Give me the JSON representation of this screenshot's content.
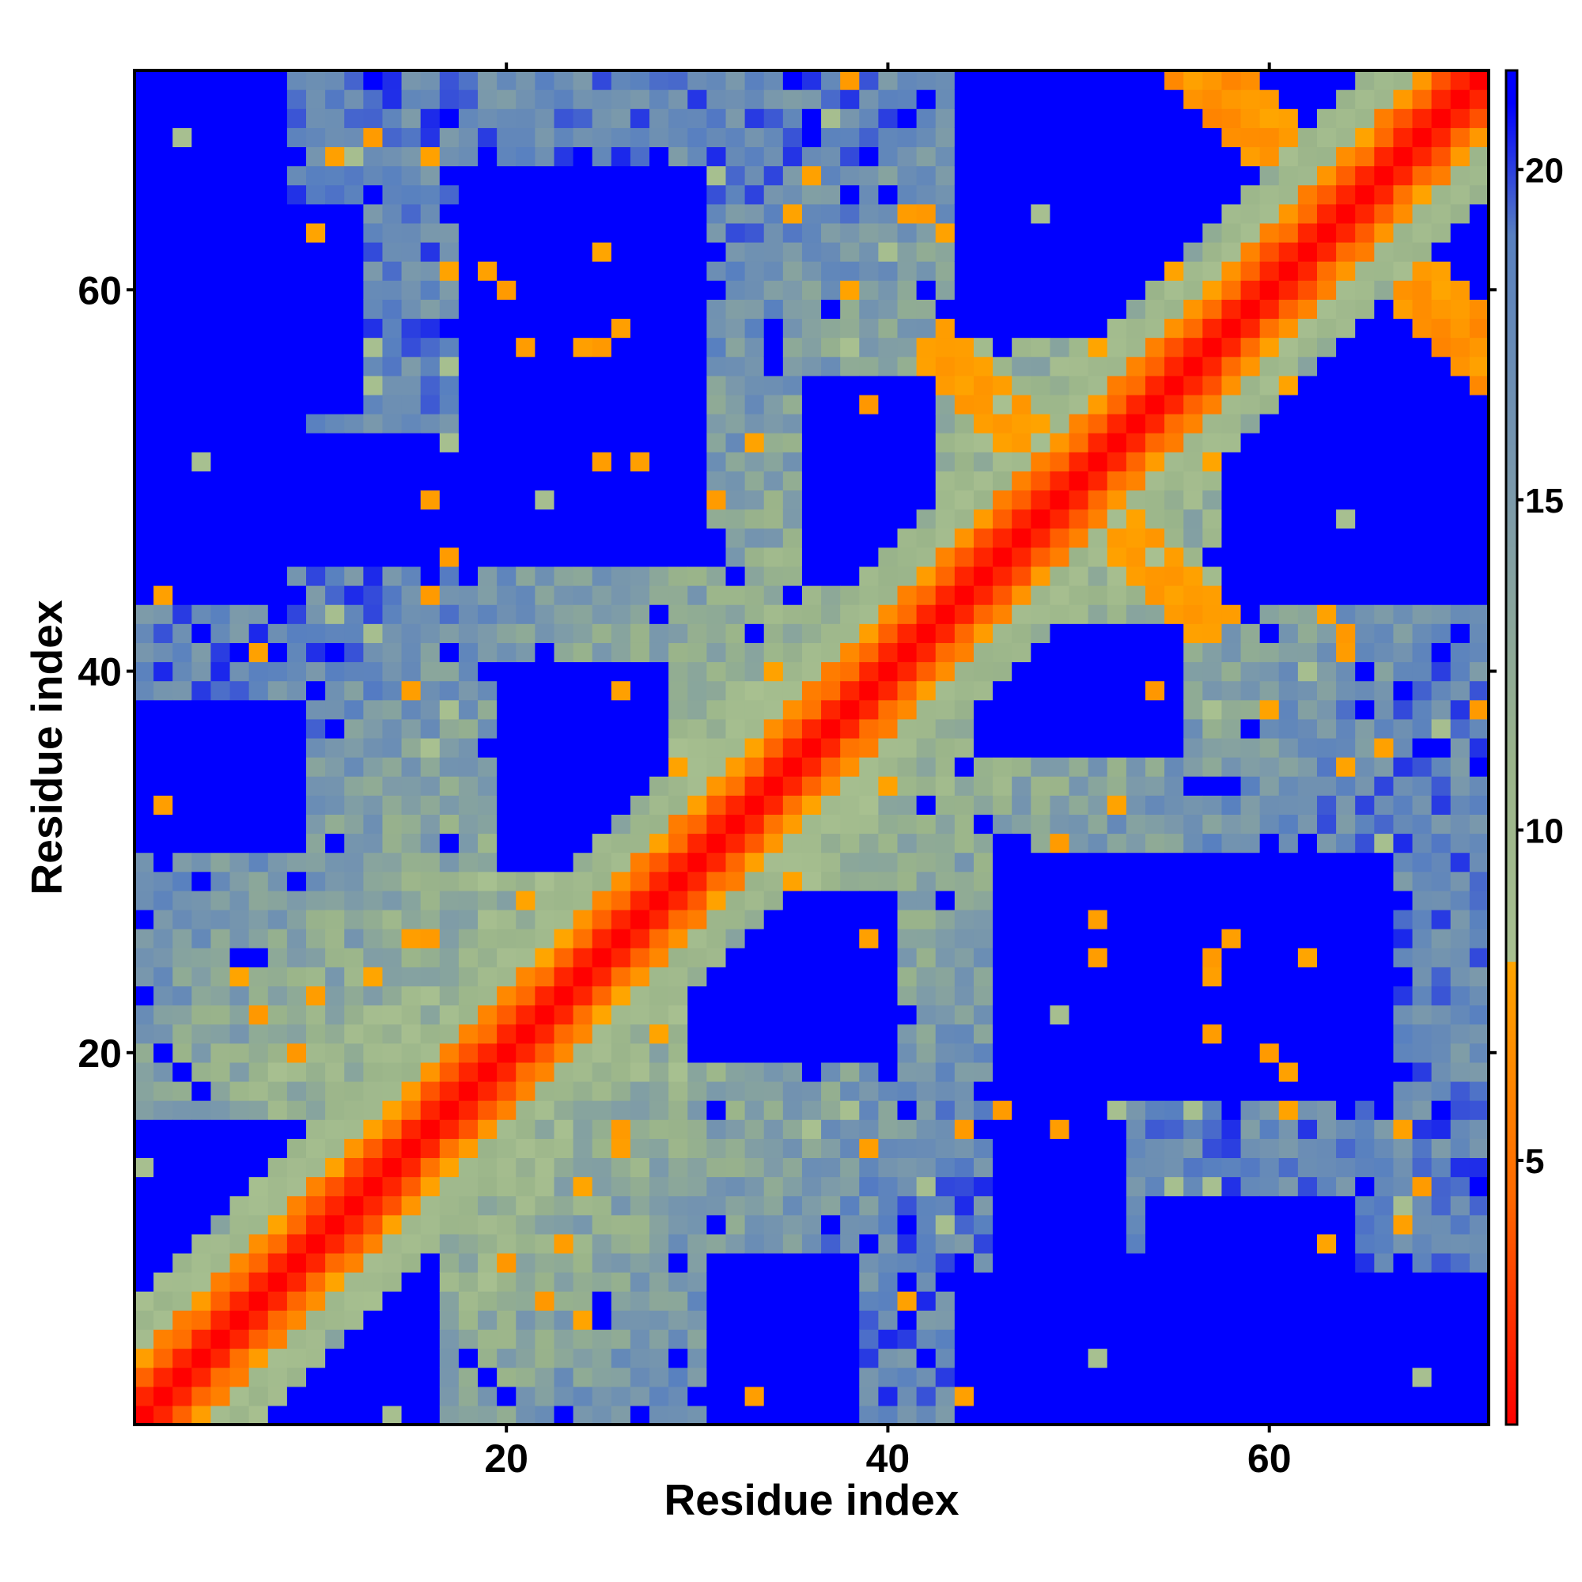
{
  "chart_data": {
    "type": "heatmap",
    "title": "",
    "xlabel": "Residue index",
    "ylabel": "Residue index",
    "n_residues": 71,
    "xlim": [
      1,
      71
    ],
    "ylim": [
      1,
      71
    ],
    "x_ticks": [
      20,
      40,
      60
    ],
    "y_ticks": [
      20,
      40,
      60
    ],
    "x_tick_labels": [
      "20",
      "40",
      "60"
    ],
    "y_tick_labels": [
      "20",
      "40",
      "60"
    ],
    "colorbar": {
      "range": [
        1,
        21.5
      ],
      "ticks": [
        5,
        10,
        15,
        20
      ],
      "tick_labels": [
        "5",
        "10",
        "15",
        "20"
      ],
      "stops": [
        {
          "value": 1,
          "color": "#ff0000"
        },
        {
          "value": 4.5,
          "color": "#ff6a00"
        },
        {
          "value": 8.0,
          "color": "#ffa500"
        },
        {
          "value": 8.01,
          "color": "#a8c090"
        },
        {
          "value": 11,
          "color": "#9ab48a"
        },
        {
          "value": 15,
          "color": "#7c9aaa"
        },
        {
          "value": 19,
          "color": "#5880c0"
        },
        {
          "value": 21,
          "color": "#0000ff"
        }
      ]
    },
    "matrix_description": "symmetric residue-residue distance map; distance grows with |i-j|, capped near 21; blue blocks mark far-apart regions",
    "far_blocks": [
      {
        "i": [
          1,
          8
        ],
        "j": [
          44,
          71
        ]
      },
      {
        "i": [
          1,
          12
        ],
        "j": [
          1,
          16
        ],
        "offdiag_only": true
      },
      {
        "i": [
          18,
          30
        ],
        "j": [
          52,
          66
        ]
      },
      {
        "i": [
          20,
          28
        ],
        "j": [
          30,
          40
        ]
      },
      {
        "i": [
          31,
          38
        ],
        "j": [
          1,
          9
        ]
      },
      {
        "i": [
          36,
          42
        ],
        "j": [
          45,
          55
        ]
      },
      {
        "i": [
          46,
          52
        ],
        "j": [
          1,
          30
        ]
      },
      {
        "i": [
          45,
          57
        ],
        "j": [
          60,
          68
        ]
      },
      {
        "i": [
          54,
          64
        ],
        "j": [
          1,
          12
        ]
      },
      {
        "i": [
          58,
          71
        ],
        "j": [
          44,
          71
        ]
      },
      {
        "i": [
          60,
          68
        ],
        "j": [
          64,
          71
        ]
      }
    ]
  }
}
